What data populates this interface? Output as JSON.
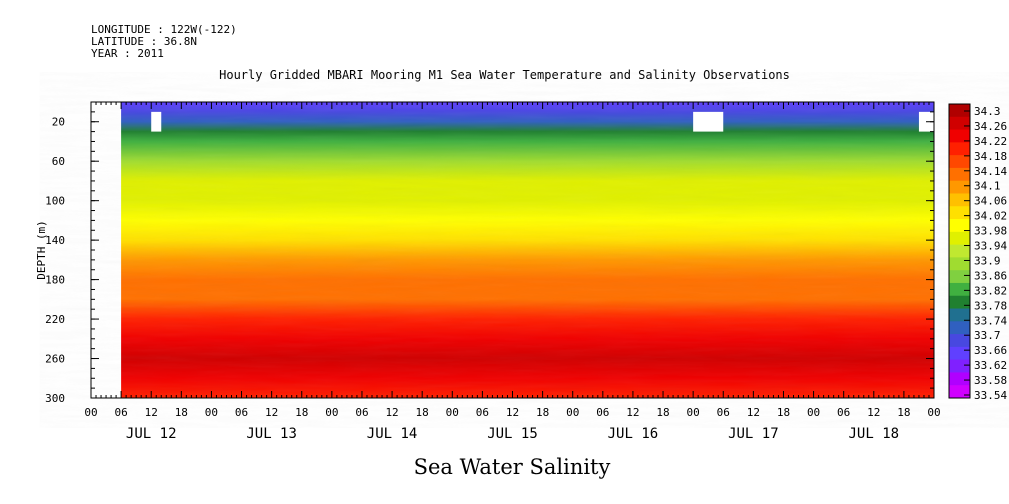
{
  "header": {
    "longitude": "LONGITUDE : 122W(-122)",
    "latitude": "LATITUDE : 36.8N",
    "year": "YEAR : 2011"
  },
  "title": "Hourly Gridded MBARI Mooring M1 Sea Water Temperature and Salinity Observations",
  "variable_title": "Sea Water Salinity",
  "chart_data": {
    "type": "heatmap",
    "title": "Hourly Gridded MBARI Mooring M1 Sea Water Temperature and Salinity Observations",
    "variable": "Sea Water Salinity",
    "ylabel": "DEPTH (m)",
    "y_reversed": true,
    "ylim": [
      0,
      300
    ],
    "y_ticks": [
      "20",
      "60",
      "100",
      "140",
      "180",
      "220",
      "260",
      "300"
    ],
    "x_hour_ticks": [
      "00",
      "06",
      "12",
      "18",
      "00",
      "06",
      "12",
      "18",
      "00",
      "06",
      "12",
      "18",
      "00",
      "06",
      "12",
      "18",
      "00",
      "06",
      "12",
      "18",
      "00",
      "06",
      "12",
      "18",
      "00",
      "06",
      "12",
      "18",
      "00"
    ],
    "x_day_labels": [
      "JUL 12",
      "JUL 13",
      "JUL 14",
      "JUL 15",
      "JUL 16",
      "JUL 17",
      "JUL 18"
    ],
    "xlim": [
      "JUL 12 00",
      "JUL 19 00"
    ],
    "data_start": "JUL 12 06",
    "data_end": "JUL 19 00",
    "depth_profile": [
      {
        "depth": 0,
        "salinity": 33.66
      },
      {
        "depth": 10,
        "salinity": 33.68
      },
      {
        "depth": 20,
        "salinity": 33.72
      },
      {
        "depth": 30,
        "salinity": 33.78
      },
      {
        "depth": 40,
        "salinity": 33.83
      },
      {
        "depth": 60,
        "salinity": 33.9
      },
      {
        "depth": 80,
        "salinity": 33.95
      },
      {
        "depth": 100,
        "salinity": 33.97
      },
      {
        "depth": 120,
        "salinity": 34.0
      },
      {
        "depth": 140,
        "salinity": 34.04
      },
      {
        "depth": 160,
        "salinity": 34.1
      },
      {
        "depth": 180,
        "salinity": 34.12
      },
      {
        "depth": 200,
        "salinity": 34.14
      },
      {
        "depth": 220,
        "salinity": 34.18
      },
      {
        "depth": 240,
        "salinity": 34.22
      },
      {
        "depth": 260,
        "salinity": 34.26
      },
      {
        "depth": 280,
        "salinity": 34.23
      },
      {
        "depth": 300,
        "salinity": 34.2
      }
    ],
    "colorbar": {
      "min": 33.54,
      "max": 34.3,
      "labels": [
        "34.3",
        "34.26",
        "34.22",
        "34.18",
        "34.14",
        "34.1",
        "34.06",
        "34.02",
        "33.98",
        "33.94",
        "33.9",
        "33.86",
        "33.82",
        "33.78",
        "33.74",
        "33.7",
        "33.66",
        "33.62",
        "33.58",
        "33.54"
      ],
      "colors": [
        "#b00000",
        "#d00000",
        "#f00000",
        "#ff2000",
        "#ff4800",
        "#ff7000",
        "#ff9800",
        "#ffc000",
        "#ffe000",
        "#ffff00",
        "#e0f000",
        "#c0e830",
        "#a0dc30",
        "#80d040",
        "#40b040",
        "#208030",
        "#207090",
        "#3060c0",
        "#4848e0",
        "#6040ff",
        "#8020ff",
        "#b000ff",
        "#d000ff"
      ]
    },
    "gaps": [
      {
        "start": "JUL 12 12",
        "end": "JUL 12 14",
        "depth_top": 10,
        "depth_bottom": 30
      },
      {
        "start": "JUL 17 00",
        "end": "JUL 17 06",
        "depth_top": 10,
        "depth_bottom": 30
      },
      {
        "start": "JUL 18 21",
        "end": "JUL 19 00",
        "depth_top": 10,
        "depth_bottom": 30
      }
    ]
  }
}
